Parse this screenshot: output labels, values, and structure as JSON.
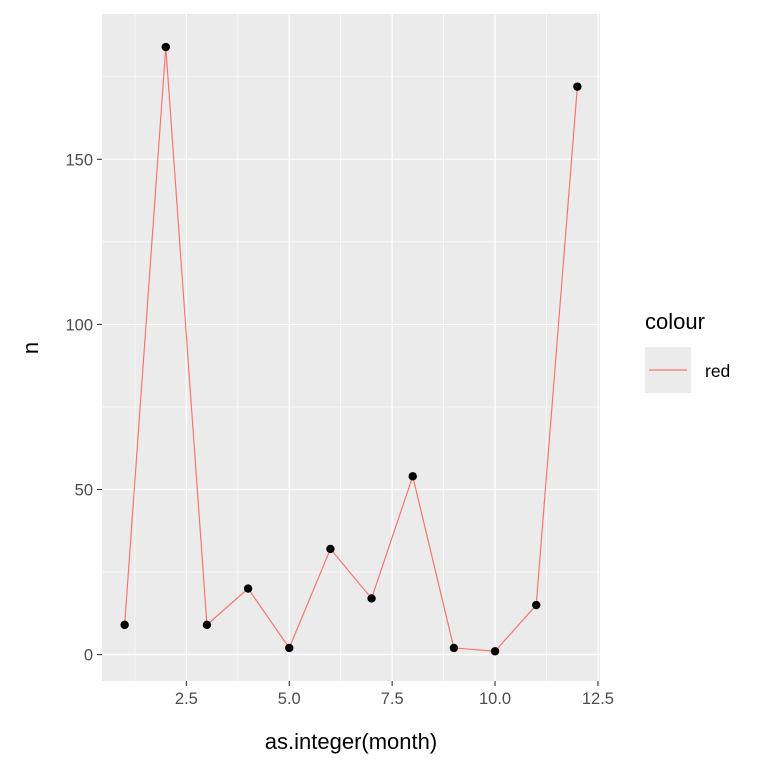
{
  "chart_data": {
    "type": "line",
    "xlabel": "as.integer(month)",
    "ylabel": "n",
    "x": [
      1,
      2,
      3,
      4,
      5,
      6,
      7,
      8,
      9,
      10,
      11,
      12
    ],
    "series": [
      {
        "name": "red",
        "values": [
          9,
          184,
          9,
          20,
          2,
          32,
          17,
          54,
          2,
          1,
          15,
          172
        ]
      }
    ],
    "xlim": [
      0.45,
      12.55
    ],
    "ylim": [
      -8,
      194
    ],
    "x_ticks": [
      2.5,
      5.0,
      7.5,
      10.0,
      12.5
    ],
    "x_tick_labels": [
      "2.5",
      "5.0",
      "7.5",
      "10.0",
      "12.5"
    ],
    "y_ticks": [
      0,
      50,
      100,
      150
    ],
    "y_tick_labels": [
      "0",
      "50",
      "100",
      "150"
    ],
    "grid": true,
    "legend": {
      "title": "colour",
      "position": "right",
      "entries": [
        "red"
      ]
    },
    "colors": {
      "panel_background": "#ebebeb",
      "grid_major": "#ffffff",
      "line": "#f8766d",
      "points": "#000000",
      "tick_text": "#4d4d4d",
      "tick_mark": "#333333"
    }
  }
}
